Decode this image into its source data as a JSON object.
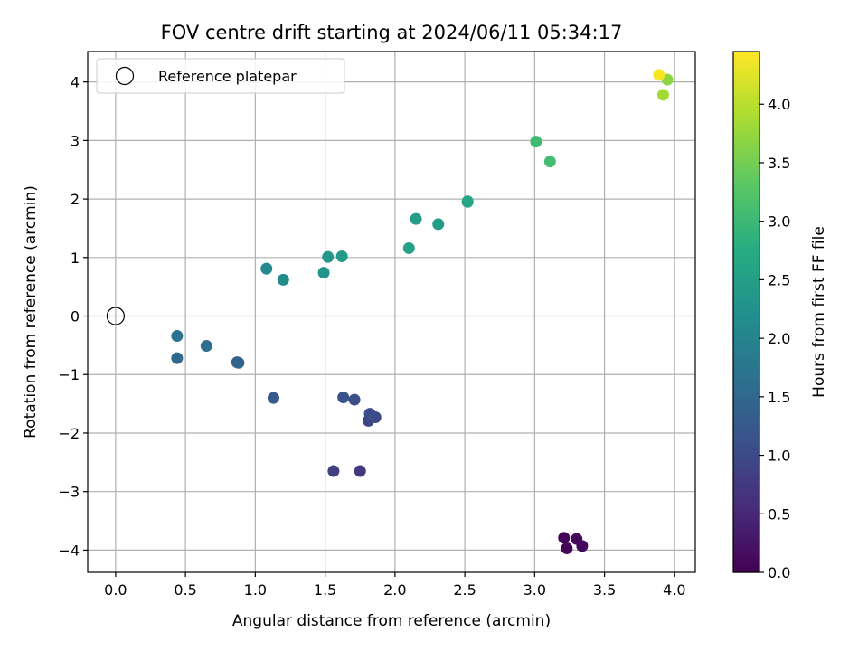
{
  "chart_data": {
    "type": "scatter",
    "title": "FOV centre drift starting at 2024/06/11 05:34:17",
    "xlabel": "Angular distance from reference (arcmin)",
    "ylabel": "Rotation from reference (arcmin)",
    "xlim": [
      -0.2,
      4.15
    ],
    "ylim": [
      -4.38,
      4.52
    ],
    "xticks": [
      0.0,
      0.5,
      1.0,
      1.5,
      2.0,
      2.5,
      3.0,
      3.5,
      4.0
    ],
    "xtick_labels": [
      "0.0",
      "0.5",
      "1.0",
      "1.5",
      "2.0",
      "2.5",
      "3.0",
      "3.5",
      "4.0"
    ],
    "yticks": [
      -4,
      -3,
      -2,
      -1,
      0,
      1,
      2,
      3,
      4
    ],
    "ytick_labels": [
      "−4",
      "−3",
      "−2",
      "−1",
      "0",
      "1",
      "2",
      "3",
      "4"
    ],
    "grid": true,
    "legend": {
      "placement": "upper-left",
      "entries": [
        "Reference platepar"
      ]
    },
    "reference_point": {
      "x": 0.0,
      "y": 0.0
    },
    "colorbar": {
      "label": "Hours from first FF file",
      "colormap": "viridis",
      "range": [
        0.0,
        4.45
      ],
      "ticks": [
        0.0,
        0.5,
        1.0,
        1.5,
        2.0,
        2.5,
        3.0,
        3.5,
        4.0
      ],
      "tick_labels": [
        "0.0",
        "0.5",
        "1.0",
        "1.5",
        "2.0",
        "2.5",
        "3.0",
        "3.5",
        "4.0"
      ]
    },
    "points": [
      {
        "x": 3.23,
        "y": -3.97,
        "c": 0.02
      },
      {
        "x": 3.21,
        "y": -3.79,
        "c": 0.05
      },
      {
        "x": 3.3,
        "y": -3.81,
        "c": 0.08
      },
      {
        "x": 3.34,
        "y": -3.93,
        "c": 0.12
      },
      {
        "x": 1.75,
        "y": -2.65,
        "c": 0.75
      },
      {
        "x": 1.56,
        "y": -2.65,
        "c": 0.85
      },
      {
        "x": 1.81,
        "y": -1.79,
        "c": 0.95
      },
      {
        "x": 1.86,
        "y": -1.73,
        "c": 1.0
      },
      {
        "x": 1.82,
        "y": -1.67,
        "c": 1.05
      },
      {
        "x": 1.71,
        "y": -1.43,
        "c": 1.1
      },
      {
        "x": 1.63,
        "y": -1.39,
        "c": 1.15
      },
      {
        "x": 1.13,
        "y": -1.4,
        "c": 1.25
      },
      {
        "x": 0.87,
        "y": -0.79,
        "c": 1.4
      },
      {
        "x": 0.88,
        "y": -0.8,
        "c": 1.45
      },
      {
        "x": 0.44,
        "y": -0.72,
        "c": 1.55
      },
      {
        "x": 0.65,
        "y": -0.51,
        "c": 1.6
      },
      {
        "x": 0.44,
        "y": -0.34,
        "c": 1.7
      },
      {
        "x": 1.08,
        "y": 0.81,
        "c": 2.1
      },
      {
        "x": 1.2,
        "y": 0.62,
        "c": 2.15
      },
      {
        "x": 1.49,
        "y": 0.74,
        "c": 2.3
      },
      {
        "x": 1.52,
        "y": 1.01,
        "c": 2.35
      },
      {
        "x": 1.62,
        "y": 1.02,
        "c": 2.4
      },
      {
        "x": 2.1,
        "y": 1.16,
        "c": 2.55
      },
      {
        "x": 2.15,
        "y": 1.66,
        "c": 2.5
      },
      {
        "x": 2.31,
        "y": 1.57,
        "c": 2.45
      },
      {
        "x": 2.52,
        "y": 1.96,
        "c": 2.6
      },
      {
        "x": 2.52,
        "y": 1.95,
        "c": 2.65
      },
      {
        "x": 3.01,
        "y": 2.98,
        "c": 3.05
      },
      {
        "x": 3.11,
        "y": 2.64,
        "c": 3.1
      },
      {
        "x": 3.92,
        "y": 3.78,
        "c": 3.85
      },
      {
        "x": 3.95,
        "y": 4.04,
        "c": 3.7
      },
      {
        "x": 3.89,
        "y": 4.12,
        "c": 4.4
      }
    ]
  }
}
